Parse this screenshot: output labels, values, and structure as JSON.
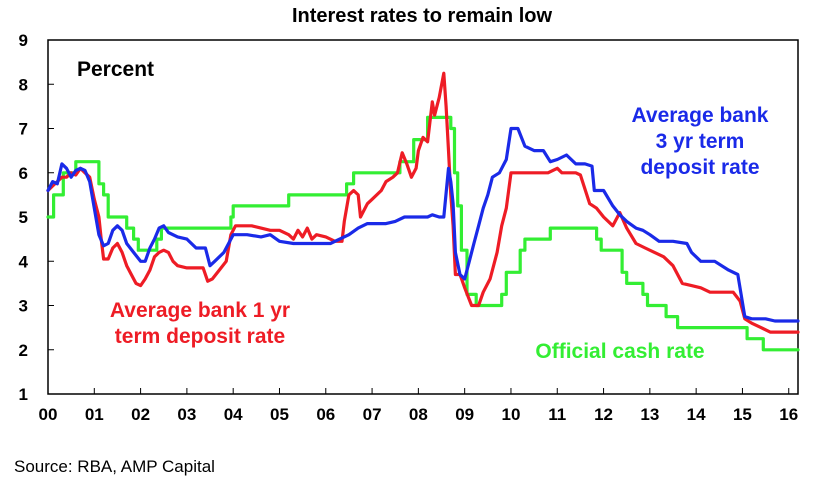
{
  "chart_data": {
    "type": "line",
    "title": "Interest rates to remain low",
    "ylabel": "Percent",
    "xlabel": "",
    "source": "Source: RBA, AMP Capital",
    "xlim": [
      2000.0,
      2016.2
    ],
    "ylim": [
      1,
      9
    ],
    "yticks": [
      1,
      2,
      3,
      4,
      5,
      6,
      7,
      8,
      9
    ],
    "xticks": [
      {
        "label": "00",
        "value": 2000
      },
      {
        "label": "01",
        "value": 2001
      },
      {
        "label": "02",
        "value": 2002
      },
      {
        "label": "03",
        "value": 2003
      },
      {
        "label": "04",
        "value": 2004
      },
      {
        "label": "05",
        "value": 2005
      },
      {
        "label": "06",
        "value": 2006
      },
      {
        "label": "07",
        "value": 2007
      },
      {
        "label": "08",
        "value": 2008
      },
      {
        "label": "09",
        "value": 2009
      },
      {
        "label": "10",
        "value": 2010
      },
      {
        "label": "11",
        "value": 2011
      },
      {
        "label": "12",
        "value": 2012
      },
      {
        "label": "13",
        "value": 2013
      },
      {
        "label": "14",
        "value": 2014
      },
      {
        "label": "15",
        "value": 2015
      },
      {
        "label": "16",
        "value": 2016
      }
    ],
    "grid": false,
    "series": [
      {
        "name": "Official cash rate",
        "color": "#33ee33",
        "label_lines": [
          "Official cash rate"
        ],
        "step": true,
        "points": [
          [
            2000.0,
            5.0
          ],
          [
            2000.12,
            5.5
          ],
          [
            2000.33,
            6.0
          ],
          [
            2000.6,
            6.25
          ],
          [
            2001.1,
            5.75
          ],
          [
            2001.2,
            5.5
          ],
          [
            2001.3,
            5.0
          ],
          [
            2001.7,
            4.75
          ],
          [
            2001.85,
            4.5
          ],
          [
            2001.95,
            4.25
          ],
          [
            2002.35,
            4.5
          ],
          [
            2002.45,
            4.75
          ],
          [
            2003.95,
            5.0
          ],
          [
            2004.0,
            5.25
          ],
          [
            2005.2,
            5.5
          ],
          [
            2006.45,
            5.75
          ],
          [
            2006.6,
            6.0
          ],
          [
            2007.6,
            6.25
          ],
          [
            2007.9,
            6.75
          ],
          [
            2008.2,
            7.25
          ],
          [
            2008.7,
            7.0
          ],
          [
            2008.78,
            6.0
          ],
          [
            2008.85,
            5.25
          ],
          [
            2008.93,
            4.25
          ],
          [
            2009.05,
            3.25
          ],
          [
            2009.25,
            3.0
          ],
          [
            2009.8,
            3.25
          ],
          [
            2009.9,
            3.75
          ],
          [
            2010.2,
            4.25
          ],
          [
            2010.3,
            4.5
          ],
          [
            2010.85,
            4.75
          ],
          [
            2011.85,
            4.5
          ],
          [
            2011.95,
            4.25
          ],
          [
            2012.4,
            3.75
          ],
          [
            2012.5,
            3.5
          ],
          [
            2012.85,
            3.25
          ],
          [
            2012.95,
            3.0
          ],
          [
            2013.35,
            2.75
          ],
          [
            2013.6,
            2.5
          ],
          [
            2015.1,
            2.25
          ],
          [
            2015.45,
            2.0
          ],
          [
            2016.2,
            2.0
          ]
        ]
      },
      {
        "name": "Average bank 1 yr term deposit rate",
        "color": "#ee1c25",
        "label_lines": [
          "Average bank 1 yr",
          "term deposit rate"
        ],
        "step": false,
        "points": [
          [
            2000.0,
            5.6
          ],
          [
            2000.1,
            5.7
          ],
          [
            2000.2,
            5.8
          ],
          [
            2000.3,
            5.9
          ],
          [
            2000.4,
            5.9
          ],
          [
            2000.5,
            6.0
          ],
          [
            2000.6,
            5.95
          ],
          [
            2000.7,
            6.1
          ],
          [
            2000.8,
            6.0
          ],
          [
            2000.9,
            5.9
          ],
          [
            2001.0,
            5.4
          ],
          [
            2001.1,
            5.0
          ],
          [
            2001.15,
            4.5
          ],
          [
            2001.2,
            4.05
          ],
          [
            2001.3,
            4.05
          ],
          [
            2001.4,
            4.3
          ],
          [
            2001.5,
            4.4
          ],
          [
            2001.6,
            4.2
          ],
          [
            2001.7,
            3.9
          ],
          [
            2001.8,
            3.7
          ],
          [
            2001.9,
            3.5
          ],
          [
            2002.0,
            3.45
          ],
          [
            2002.1,
            3.6
          ],
          [
            2002.2,
            3.8
          ],
          [
            2002.3,
            4.1
          ],
          [
            2002.4,
            4.2
          ],
          [
            2002.5,
            4.25
          ],
          [
            2002.6,
            4.2
          ],
          [
            2002.7,
            4.0
          ],
          [
            2002.8,
            3.9
          ],
          [
            2003.0,
            3.85
          ],
          [
            2003.2,
            3.85
          ],
          [
            2003.35,
            3.85
          ],
          [
            2003.45,
            3.55
          ],
          [
            2003.55,
            3.6
          ],
          [
            2003.7,
            3.8
          ],
          [
            2003.85,
            4.0
          ],
          [
            2003.95,
            4.6
          ],
          [
            2004.05,
            4.8
          ],
          [
            2004.2,
            4.8
          ],
          [
            2004.4,
            4.8
          ],
          [
            2004.6,
            4.75
          ],
          [
            2004.8,
            4.7
          ],
          [
            2005.0,
            4.7
          ],
          [
            2005.2,
            4.6
          ],
          [
            2005.3,
            4.5
          ],
          [
            2005.4,
            4.7
          ],
          [
            2005.5,
            4.55
          ],
          [
            2005.6,
            4.75
          ],
          [
            2005.7,
            4.5
          ],
          [
            2005.8,
            4.6
          ],
          [
            2006.0,
            4.55
          ],
          [
            2006.2,
            4.45
          ],
          [
            2006.35,
            4.45
          ],
          [
            2006.4,
            4.9
          ],
          [
            2006.5,
            5.5
          ],
          [
            2006.6,
            5.6
          ],
          [
            2006.7,
            5.5
          ],
          [
            2006.75,
            5.0
          ],
          [
            2006.9,
            5.3
          ],
          [
            2007.0,
            5.4
          ],
          [
            2007.2,
            5.6
          ],
          [
            2007.3,
            5.8
          ],
          [
            2007.45,
            5.9
          ],
          [
            2007.55,
            6.0
          ],
          [
            2007.65,
            6.45
          ],
          [
            2007.75,
            6.2
          ],
          [
            2007.85,
            5.9
          ],
          [
            2007.95,
            6.1
          ],
          [
            2008.0,
            6.5
          ],
          [
            2008.1,
            6.8
          ],
          [
            2008.2,
            6.7
          ],
          [
            2008.3,
            7.6
          ],
          [
            2008.35,
            7.3
          ],
          [
            2008.45,
            7.7
          ],
          [
            2008.55,
            8.25
          ],
          [
            2008.6,
            7.5
          ],
          [
            2008.65,
            6.5
          ],
          [
            2008.7,
            5.5
          ],
          [
            2008.75,
            4.8
          ],
          [
            2008.8,
            3.7
          ],
          [
            2008.9,
            3.7
          ],
          [
            2008.95,
            3.55
          ],
          [
            2009.0,
            3.4
          ],
          [
            2009.15,
            3.0
          ],
          [
            2009.3,
            3.0
          ],
          [
            2009.4,
            3.3
          ],
          [
            2009.55,
            3.6
          ],
          [
            2009.7,
            4.2
          ],
          [
            2009.8,
            4.8
          ],
          [
            2009.9,
            5.2
          ],
          [
            2010.0,
            6.0
          ],
          [
            2010.2,
            6.0
          ],
          [
            2010.5,
            6.0
          ],
          [
            2010.8,
            6.0
          ],
          [
            2011.0,
            6.1
          ],
          [
            2011.1,
            6.0
          ],
          [
            2011.4,
            6.0
          ],
          [
            2011.5,
            5.95
          ],
          [
            2011.7,
            5.3
          ],
          [
            2011.85,
            5.2
          ],
          [
            2012.0,
            5.0
          ],
          [
            2012.2,
            4.8
          ],
          [
            2012.35,
            5.1
          ],
          [
            2012.5,
            4.75
          ],
          [
            2012.7,
            4.4
          ],
          [
            2012.9,
            4.3
          ],
          [
            2013.1,
            4.2
          ],
          [
            2013.3,
            4.1
          ],
          [
            2013.5,
            3.9
          ],
          [
            2013.7,
            3.5
          ],
          [
            2013.9,
            3.45
          ],
          [
            2014.1,
            3.4
          ],
          [
            2014.3,
            3.3
          ],
          [
            2014.6,
            3.3
          ],
          [
            2014.8,
            3.3
          ],
          [
            2014.95,
            3.1
          ],
          [
            2015.05,
            2.7
          ],
          [
            2015.2,
            2.6
          ],
          [
            2015.4,
            2.5
          ],
          [
            2015.6,
            2.4
          ],
          [
            2016.2,
            2.4
          ]
        ]
      },
      {
        "name": "Average bank 3 yr term deposit rate",
        "color": "#1a2ae8",
        "label_lines": [
          "Average bank",
          "3 yr term",
          "deposit rate"
        ],
        "step": false,
        "points": [
          [
            2000.0,
            5.6
          ],
          [
            2000.1,
            5.8
          ],
          [
            2000.2,
            5.75
          ],
          [
            2000.3,
            6.2
          ],
          [
            2000.4,
            6.1
          ],
          [
            2000.5,
            5.9
          ],
          [
            2000.6,
            6.05
          ],
          [
            2000.7,
            6.1
          ],
          [
            2000.8,
            6.05
          ],
          [
            2000.9,
            5.8
          ],
          [
            2001.0,
            5.2
          ],
          [
            2001.1,
            4.6
          ],
          [
            2001.2,
            4.35
          ],
          [
            2001.3,
            4.4
          ],
          [
            2001.4,
            4.7
          ],
          [
            2001.5,
            4.8
          ],
          [
            2001.6,
            4.7
          ],
          [
            2001.7,
            4.4
          ],
          [
            2001.85,
            4.2
          ],
          [
            2002.0,
            4.0
          ],
          [
            2002.1,
            4.0
          ],
          [
            2002.2,
            4.3
          ],
          [
            2002.3,
            4.5
          ],
          [
            2002.4,
            4.75
          ],
          [
            2002.5,
            4.8
          ],
          [
            2002.6,
            4.65
          ],
          [
            2002.8,
            4.55
          ],
          [
            2003.0,
            4.5
          ],
          [
            2003.2,
            4.3
          ],
          [
            2003.4,
            4.3
          ],
          [
            2003.5,
            3.9
          ],
          [
            2003.6,
            4.0
          ],
          [
            2003.8,
            4.2
          ],
          [
            2003.9,
            4.4
          ],
          [
            2004.0,
            4.6
          ],
          [
            2004.3,
            4.6
          ],
          [
            2004.6,
            4.55
          ],
          [
            2004.8,
            4.6
          ],
          [
            2005.0,
            4.45
          ],
          [
            2005.3,
            4.4
          ],
          [
            2005.6,
            4.4
          ],
          [
            2005.9,
            4.4
          ],
          [
            2006.1,
            4.4
          ],
          [
            2006.3,
            4.5
          ],
          [
            2006.5,
            4.6
          ],
          [
            2006.7,
            4.75
          ],
          [
            2006.9,
            4.85
          ],
          [
            2007.1,
            4.85
          ],
          [
            2007.3,
            4.85
          ],
          [
            2007.5,
            4.9
          ],
          [
            2007.7,
            5.0
          ],
          [
            2007.9,
            5.0
          ],
          [
            2008.1,
            5.0
          ],
          [
            2008.2,
            5.0
          ],
          [
            2008.3,
            5.05
          ],
          [
            2008.45,
            5.0
          ],
          [
            2008.55,
            5.0
          ],
          [
            2008.65,
            6.1
          ],
          [
            2008.7,
            5.8
          ],
          [
            2008.75,
            5.3
          ],
          [
            2008.8,
            4.2
          ],
          [
            2008.9,
            3.7
          ],
          [
            2009.0,
            3.6
          ],
          [
            2009.1,
            4.0
          ],
          [
            2009.2,
            4.4
          ],
          [
            2009.3,
            4.8
          ],
          [
            2009.4,
            5.2
          ],
          [
            2009.5,
            5.5
          ],
          [
            2009.6,
            5.9
          ],
          [
            2009.75,
            6.0
          ],
          [
            2009.9,
            6.3
          ],
          [
            2010.0,
            7.0
          ],
          [
            2010.15,
            7.0
          ],
          [
            2010.3,
            6.6
          ],
          [
            2010.5,
            6.5
          ],
          [
            2010.7,
            6.5
          ],
          [
            2010.85,
            6.25
          ],
          [
            2011.0,
            6.3
          ],
          [
            2011.2,
            6.4
          ],
          [
            2011.4,
            6.2
          ],
          [
            2011.6,
            6.2
          ],
          [
            2011.75,
            6.15
          ],
          [
            2011.8,
            5.6
          ],
          [
            2012.0,
            5.6
          ],
          [
            2012.2,
            5.25
          ],
          [
            2012.35,
            5.05
          ],
          [
            2012.5,
            4.9
          ],
          [
            2012.7,
            4.75
          ],
          [
            2012.85,
            4.7
          ],
          [
            2013.0,
            4.6
          ],
          [
            2013.2,
            4.45
          ],
          [
            2013.5,
            4.45
          ],
          [
            2013.8,
            4.4
          ],
          [
            2013.9,
            4.2
          ],
          [
            2014.1,
            4.0
          ],
          [
            2014.4,
            4.0
          ],
          [
            2014.7,
            3.8
          ],
          [
            2014.9,
            3.7
          ],
          [
            2015.05,
            2.75
          ],
          [
            2015.2,
            2.7
          ],
          [
            2015.5,
            2.7
          ],
          [
            2015.7,
            2.65
          ],
          [
            2016.2,
            2.65
          ]
        ]
      }
    ]
  }
}
